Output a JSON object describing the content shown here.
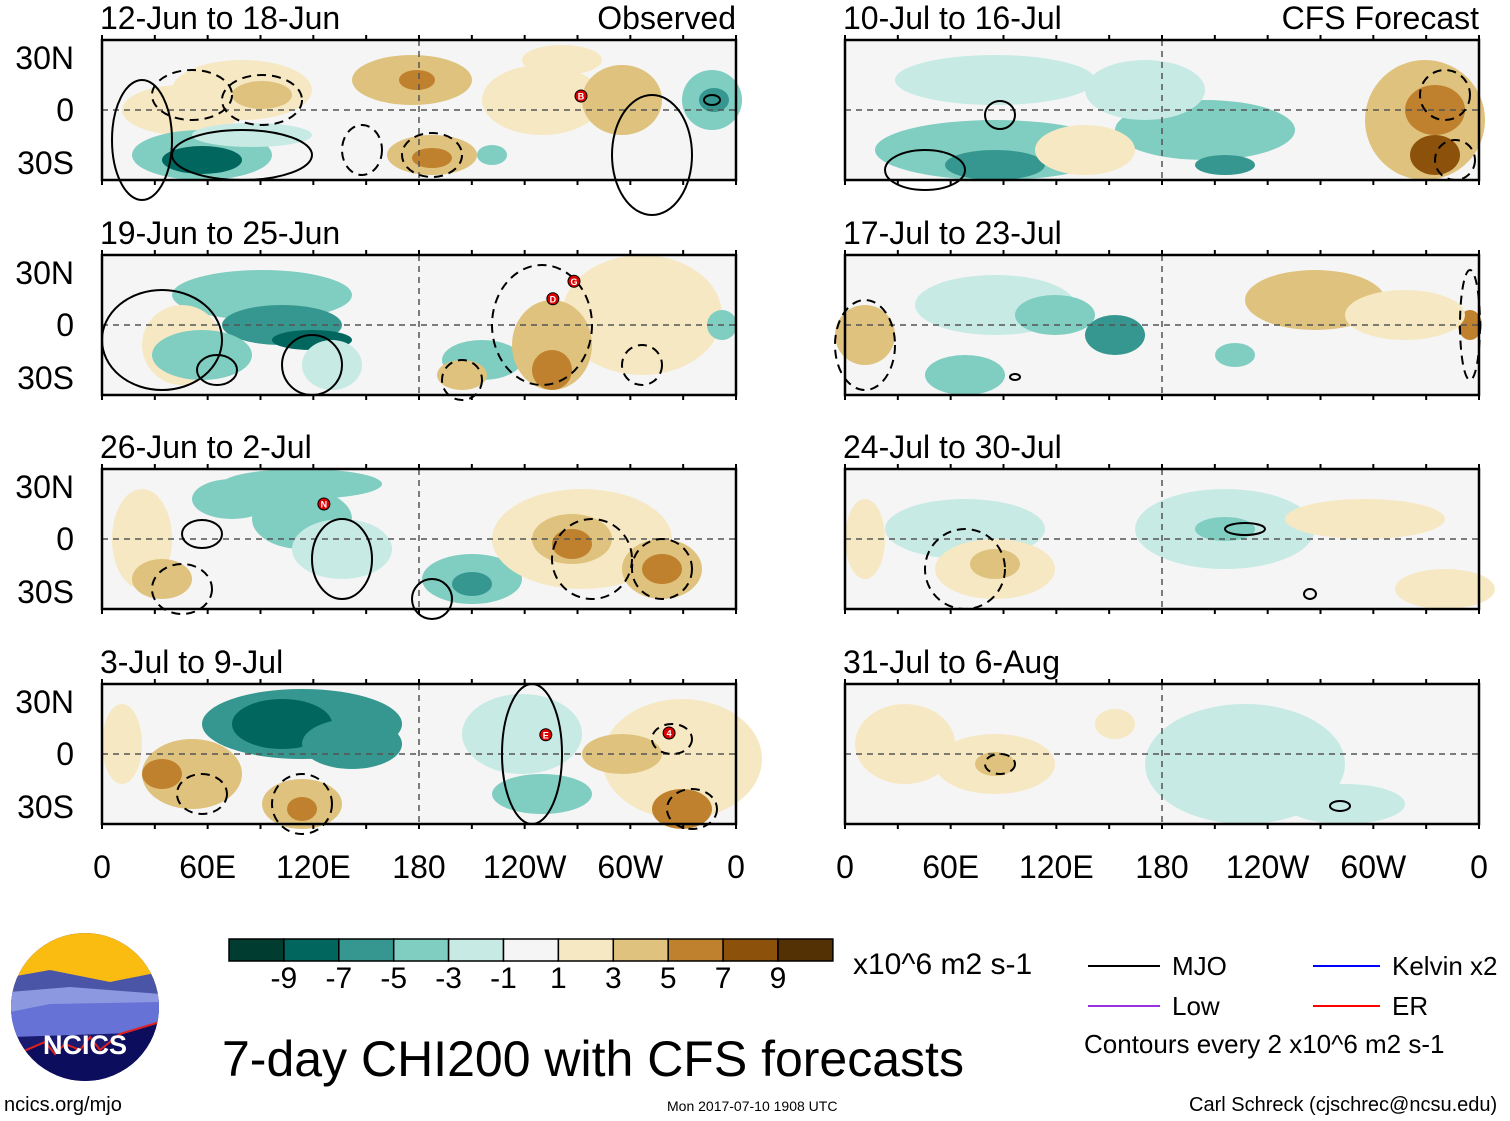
{
  "chart_data": {
    "type": "heatmap",
    "title": "7-day CHI200 with CFS forecasts",
    "units": "x10^6 m2 s-1",
    "lat_ticks": [
      "30N",
      "0",
      "30S"
    ],
    "lon_ticks": [
      "0",
      "60E",
      "120E",
      "180",
      "120W",
      "60W",
      "0"
    ],
    "colorbar": {
      "levels": [
        "-9",
        "-7",
        "-5",
        "-3",
        "-1",
        "1",
        "3",
        "5",
        "7",
        "9"
      ],
      "colors": [
        "#003c30",
        "#01665e",
        "#35978f",
        "#80cdc1",
        "#c7eae5",
        "#f5f5f5",
        "#f6e8c3",
        "#dfc27d",
        "#bf812d",
        "#8c510a",
        "#543005"
      ]
    },
    "panels": [
      {
        "title": "12-Jun to 18-Jun",
        "tag": "Observed",
        "storms": [
          {
            "label": "B",
            "lon": -88,
            "lat": 8
          }
        ]
      },
      {
        "title": "19-Jun to 25-Jun",
        "storms": [
          {
            "label": "D",
            "lon": -104,
            "lat": 15
          },
          {
            "label": "G",
            "lon": -92,
            "lat": 25
          }
        ]
      },
      {
        "title": "26-Jun to 2-Jul",
        "storms": [
          {
            "label": "N",
            "lon": 126,
            "lat": 20
          }
        ]
      },
      {
        "title": "3-Jul to 9-Jul",
        "storms": [
          {
            "label": "E",
            "lon": -108,
            "lat": 11
          },
          {
            "label": "4",
            "lon": -38,
            "lat": 12
          }
        ]
      },
      {
        "title": "10-Jul to 16-Jul",
        "tag": "CFS Forecast",
        "storms": []
      },
      {
        "title": "17-Jul to 23-Jul",
        "storms": []
      },
      {
        "title": "24-Jul to 30-Jul",
        "storms": []
      },
      {
        "title": "31-Jul to 6-Aug",
        "storms": []
      }
    ]
  },
  "legend": {
    "mjo": "MJO",
    "low": "Low",
    "kelvin": "Kelvin x2",
    "er": "ER",
    "contours": "Contours every 2 x10^6 m2 s-1",
    "colors": {
      "mjo": "#000000",
      "low": "#9933dd",
      "kelvin": "#0000ff",
      "er": "#ff0000"
    }
  },
  "footer": {
    "site": "ncics.org/mjo",
    "timestamp": "Mon 2017-07-10 1908 UTC",
    "author": "Carl Schreck (cjschrec@ncsu.edu)",
    "logo_text": "NCICS"
  }
}
